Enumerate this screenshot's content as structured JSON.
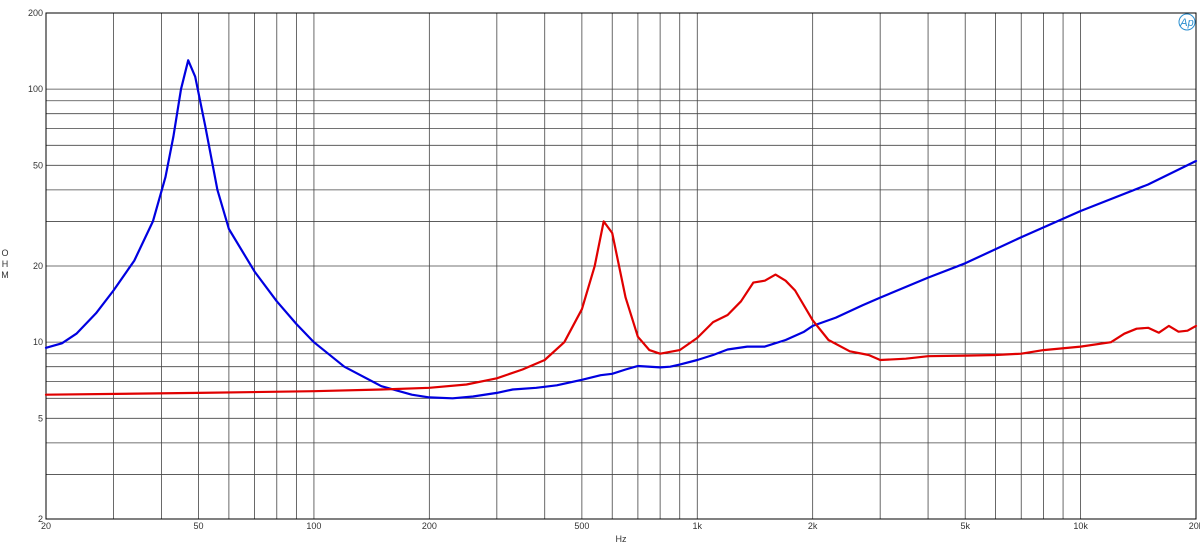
{
  "chart_data": {
    "type": "line",
    "title": "",
    "xlabel": "Hz",
    "ylabel": "OHM",
    "x_scale": "log",
    "y_scale": "log",
    "xlim": [
      20,
      20000
    ],
    "ylim": [
      2,
      200
    ],
    "grid": true,
    "legend": "none",
    "logo_text": "Ap",
    "x_ticks": [
      {
        "v": 20,
        "label": "20"
      },
      {
        "v": 50,
        "label": "50"
      },
      {
        "v": 100,
        "label": "100"
      },
      {
        "v": 200,
        "label": "200"
      },
      {
        "v": 500,
        "label": "500"
      },
      {
        "v": 1000,
        "label": "1k"
      },
      {
        "v": 2000,
        "label": "2k"
      },
      {
        "v": 5000,
        "label": "5k"
      },
      {
        "v": 10000,
        "label": "10k"
      },
      {
        "v": 20000,
        "label": "20k"
      }
    ],
    "y_ticks": [
      {
        "v": 2,
        "label": "2"
      },
      {
        "v": 5,
        "label": "5"
      },
      {
        "v": 10,
        "label": "10"
      },
      {
        "v": 20,
        "label": "20"
      },
      {
        "v": 50,
        "label": "50"
      },
      {
        "v": 100,
        "label": "100"
      },
      {
        "v": 200,
        "label": "200"
      }
    ],
    "series": [
      {
        "color": "#0000e0",
        "points": [
          [
            20,
            9.5
          ],
          [
            22,
            9.9
          ],
          [
            24,
            10.8
          ],
          [
            27,
            13
          ],
          [
            30,
            16
          ],
          [
            34,
            21
          ],
          [
            38,
            30
          ],
          [
            41,
            45
          ],
          [
            43,
            65
          ],
          [
            45,
            100
          ],
          [
            47,
            130
          ],
          [
            49,
            112
          ],
          [
            52,
            72
          ],
          [
            56,
            40
          ],
          [
            60,
            28
          ],
          [
            70,
            19
          ],
          [
            80,
            14.5
          ],
          [
            90,
            11.8
          ],
          [
            100,
            10
          ],
          [
            120,
            8
          ],
          [
            150,
            6.7
          ],
          [
            180,
            6.2
          ],
          [
            200,
            6.05
          ],
          [
            230,
            6
          ],
          [
            260,
            6.1
          ],
          [
            300,
            6.3
          ],
          [
            330,
            6.5
          ],
          [
            380,
            6.6
          ],
          [
            430,
            6.75
          ],
          [
            500,
            7.1
          ],
          [
            560,
            7.4
          ],
          [
            600,
            7.5
          ],
          [
            650,
            7.8
          ],
          [
            700,
            8.05
          ],
          [
            800,
            7.95
          ],
          [
            850,
            8.0
          ],
          [
            900,
            8.15
          ],
          [
            1000,
            8.5
          ],
          [
            1100,
            8.9
          ],
          [
            1200,
            9.35
          ],
          [
            1350,
            9.6
          ],
          [
            1500,
            9.6
          ],
          [
            1700,
            10.2
          ],
          [
            1900,
            11
          ],
          [
            2000,
            11.6
          ],
          [
            2300,
            12.5
          ],
          [
            2700,
            14
          ],
          [
            3000,
            15
          ],
          [
            4000,
            18
          ],
          [
            5000,
            20.5
          ],
          [
            7000,
            26
          ],
          [
            10000,
            33
          ],
          [
            15000,
            42
          ],
          [
            20000,
            52
          ]
        ]
      },
      {
        "color": "#e00000",
        "points": [
          [
            20,
            6.2
          ],
          [
            50,
            6.3
          ],
          [
            100,
            6.4
          ],
          [
            150,
            6.5
          ],
          [
            200,
            6.6
          ],
          [
            250,
            6.8
          ],
          [
            300,
            7.2
          ],
          [
            350,
            7.8
          ],
          [
            400,
            8.5
          ],
          [
            450,
            10
          ],
          [
            500,
            13.5
          ],
          [
            540,
            20
          ],
          [
            570,
            30
          ],
          [
            600,
            27
          ],
          [
            650,
            15
          ],
          [
            700,
            10.5
          ],
          [
            750,
            9.3
          ],
          [
            800,
            9.0
          ],
          [
            900,
            9.3
          ],
          [
            1000,
            10.4
          ],
          [
            1100,
            12
          ],
          [
            1200,
            12.8
          ],
          [
            1300,
            14.5
          ],
          [
            1400,
            17.2
          ],
          [
            1500,
            17.5
          ],
          [
            1600,
            18.5
          ],
          [
            1700,
            17.5
          ],
          [
            1800,
            16
          ],
          [
            2000,
            12.2
          ],
          [
            2200,
            10.2
          ],
          [
            2500,
            9.2
          ],
          [
            2800,
            8.9
          ],
          [
            3000,
            8.5
          ],
          [
            3500,
            8.6
          ],
          [
            4000,
            8.8
          ],
          [
            5000,
            8.85
          ],
          [
            6000,
            8.9
          ],
          [
            7000,
            9.0
          ],
          [
            8000,
            9.3
          ],
          [
            10000,
            9.6
          ],
          [
            12000,
            10
          ],
          [
            13000,
            10.8
          ],
          [
            14000,
            11.3
          ],
          [
            15000,
            11.4
          ],
          [
            16000,
            10.9
          ],
          [
            17000,
            11.6
          ],
          [
            18000,
            11.0
          ],
          [
            19000,
            11.1
          ],
          [
            20000,
            11.6
          ]
        ]
      }
    ]
  }
}
